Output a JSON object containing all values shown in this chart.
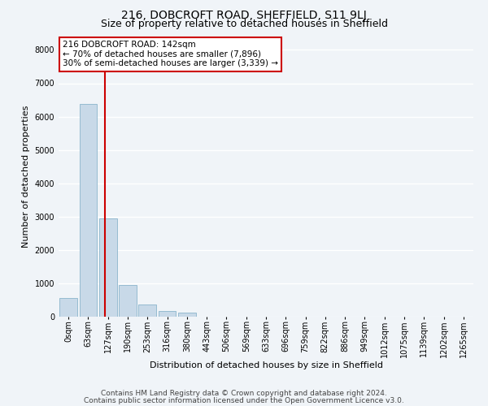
{
  "title1": "216, DOBCROFT ROAD, SHEFFIELD, S11 9LJ",
  "title2": "Size of property relative to detached houses in Sheffield",
  "xlabel": "Distribution of detached houses by size in Sheffield",
  "ylabel": "Number of detached properties",
  "bar_labels": [
    "0sqm",
    "63sqm",
    "127sqm",
    "190sqm",
    "253sqm",
    "316sqm",
    "380sqm",
    "443sqm",
    "506sqm",
    "569sqm",
    "633sqm",
    "696sqm",
    "759sqm",
    "822sqm",
    "886sqm",
    "949sqm",
    "1012sqm",
    "1075sqm",
    "1139sqm",
    "1202sqm",
    "1265sqm"
  ],
  "bar_values": [
    570,
    6380,
    2940,
    940,
    360,
    175,
    110,
    0,
    0,
    0,
    0,
    0,
    0,
    0,
    0,
    0,
    0,
    0,
    0,
    0,
    0
  ],
  "bar_color": "#c8d9e8",
  "bar_edge_color": "#8ab4cc",
  "vline_color": "#cc0000",
  "annotation_text": "216 DOBCROFT ROAD: 142sqm\n← 70% of detached houses are smaller (7,896)\n30% of semi-detached houses are larger (3,339) →",
  "annotation_box_color": "#ffffff",
  "annotation_box_edge_color": "#cc0000",
  "ylim_max": 8400,
  "yticks": [
    0,
    1000,
    2000,
    3000,
    4000,
    5000,
    6000,
    7000,
    8000
  ],
  "footer1": "Contains HM Land Registry data © Crown copyright and database right 2024.",
  "footer2": "Contains public sector information licensed under the Open Government Licence v3.0.",
  "bg_color": "#f0f4f8",
  "grid_color": "#ffffff",
  "title1_fontsize": 10,
  "title2_fontsize": 9,
  "axis_label_fontsize": 8,
  "tick_fontsize": 7,
  "annotation_fontsize": 7.5,
  "footer_fontsize": 6.5
}
